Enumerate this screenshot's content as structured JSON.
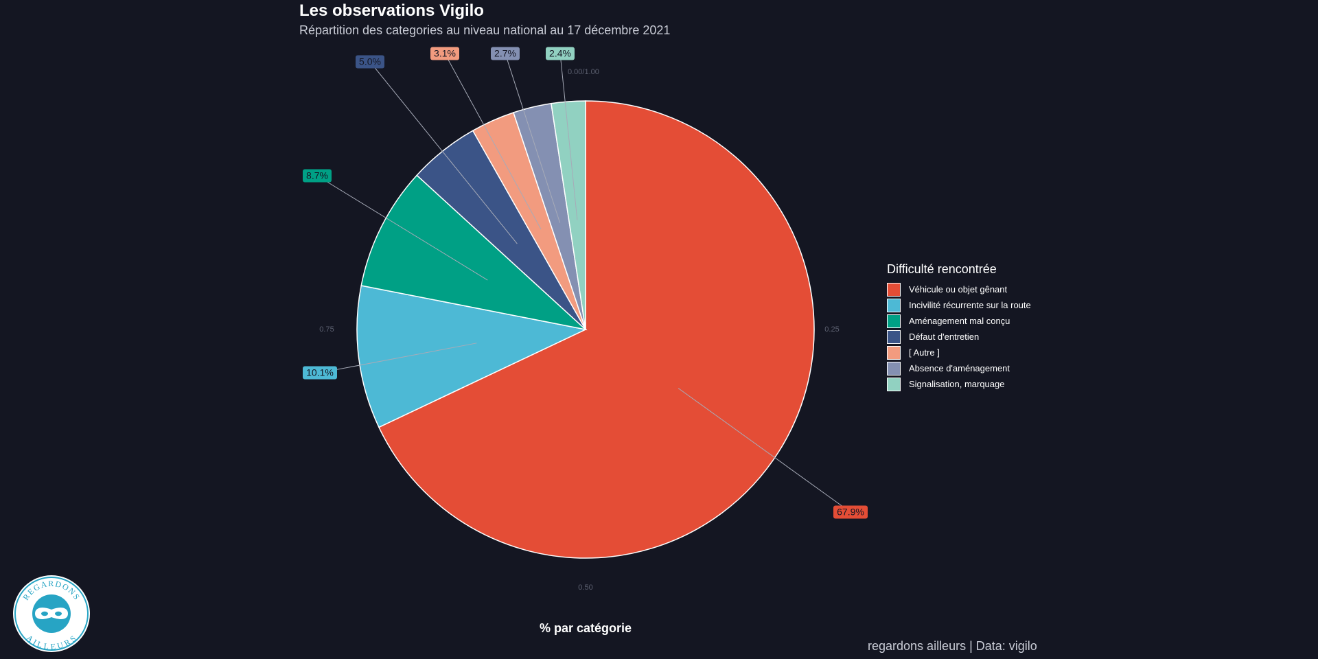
{
  "title": "Les observations Vigilo",
  "subtitle": "Répartition des categories au niveau national au 17 décembre 2021",
  "caption": "regardons ailleurs | Data: vigilo",
  "logo": {
    "text_top": "REGARDONS",
    "text_bottom": "AILLEURS",
    "icon": "mask-icon",
    "color": "#27a4c4"
  },
  "chart_data": {
    "type": "pie",
    "xlabel": "% par catégorie",
    "axis_ticks": [
      "0.00/1.00",
      "0.25",
      "0.50",
      "0.75"
    ],
    "legend_title": "Difficulté rencontrée",
    "legend_position": "right",
    "slices": [
      {
        "name": "Véhicule ou objet gênant",
        "value": 67.9,
        "label": "67.9%",
        "color": "#e44d36"
      },
      {
        "name": "Incivilité récurrente sur la route",
        "value": 10.1,
        "label": "10.1%",
        "color": "#4db9d5"
      },
      {
        "name": "Aménagement mal conçu",
        "value": 8.7,
        "label": "8.7%",
        "color": "#00a085"
      },
      {
        "name": "Défaut d'entretien",
        "value": 5.0,
        "label": "5.0%",
        "color": "#3b5487"
      },
      {
        "name": "[ Autre ]",
        "value": 3.1,
        "label": "3.1%",
        "color": "#f29b7f"
      },
      {
        "name": "Absence d'aménagement",
        "value": 2.7,
        "label": "2.7%",
        "color": "#8490b2"
      },
      {
        "name": "Signalisation, marquage",
        "value": 2.4,
        "label": "2.4%",
        "color": "#91d1c1"
      }
    ]
  }
}
